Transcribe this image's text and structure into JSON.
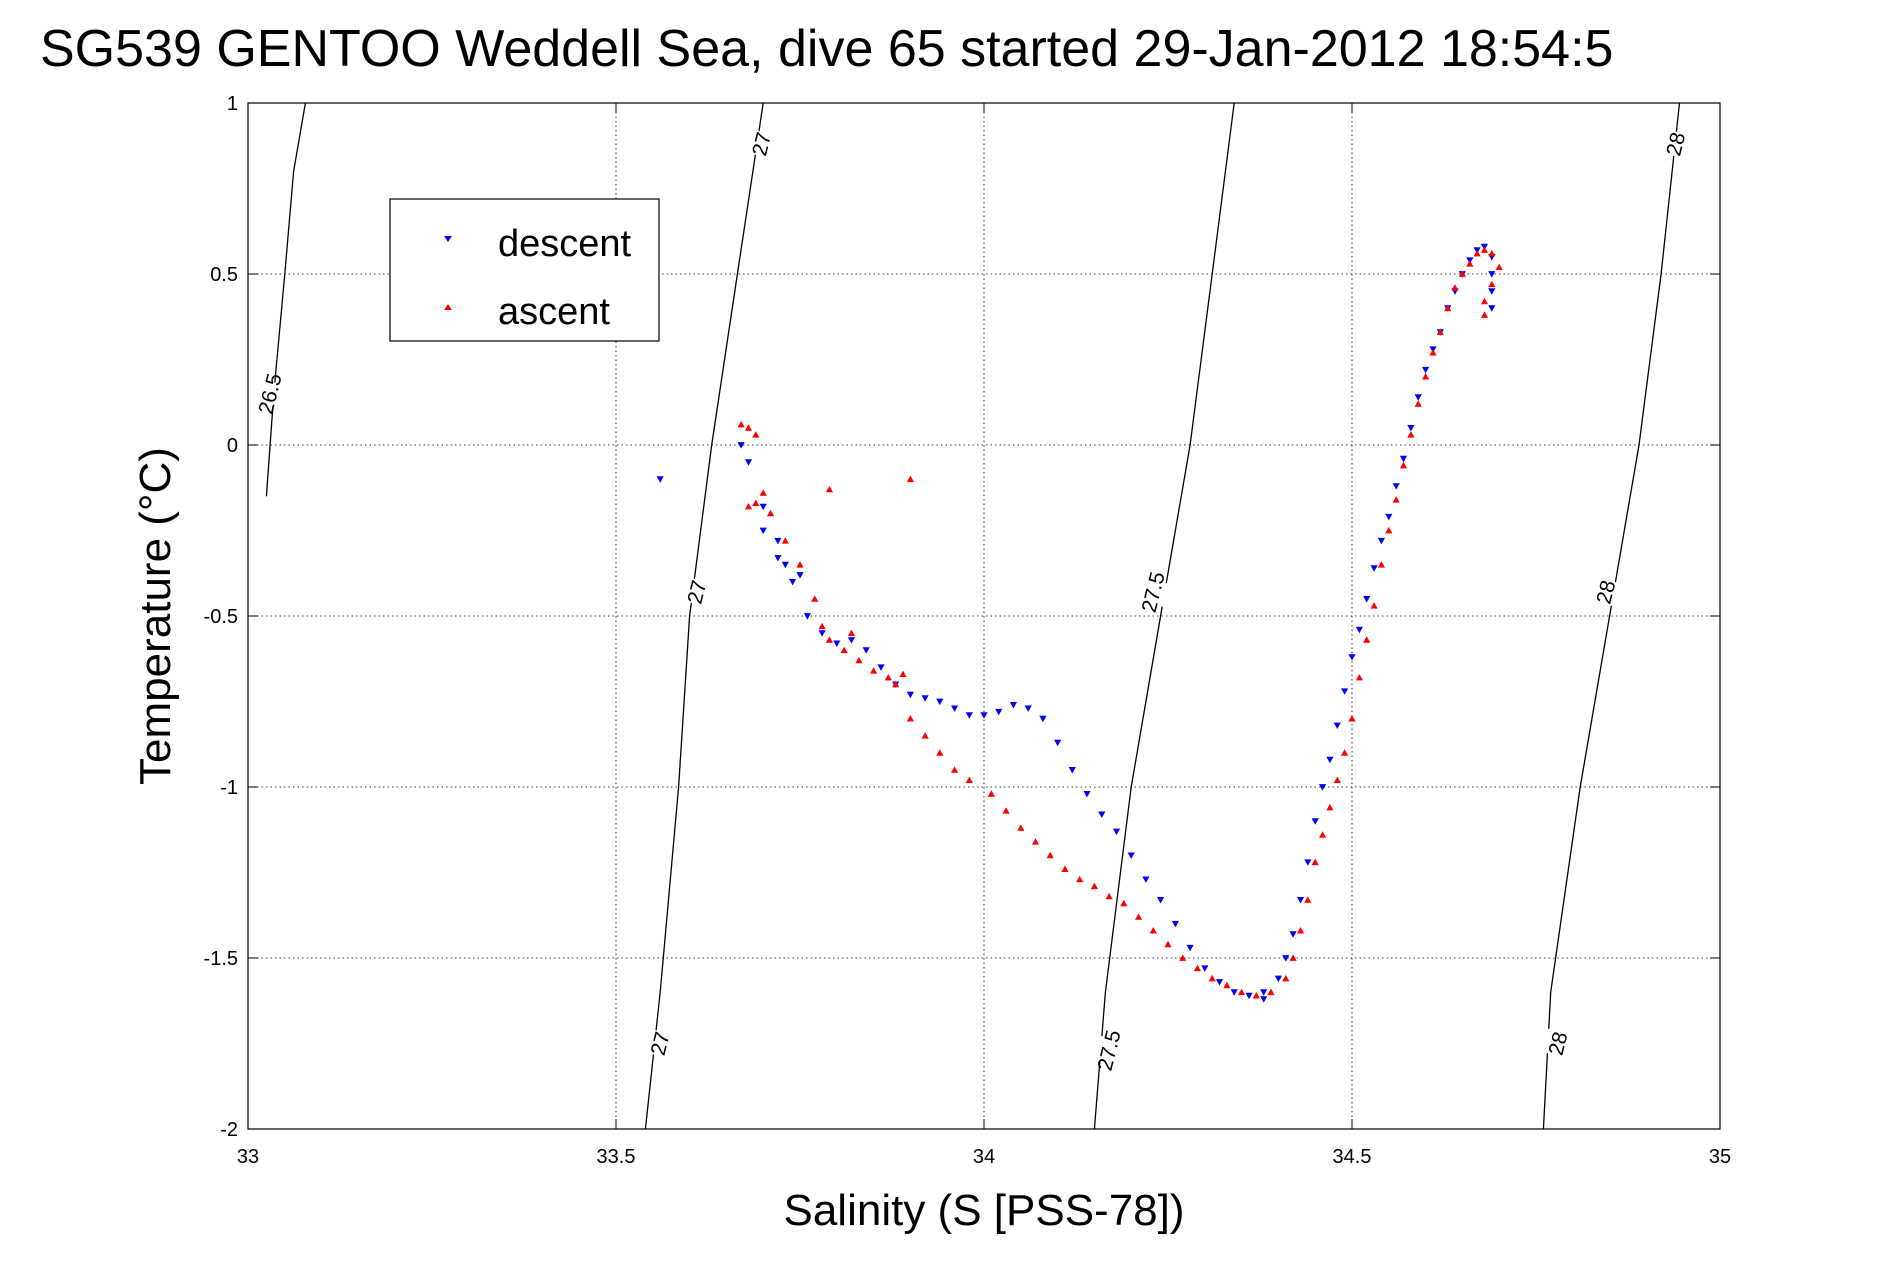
{
  "chart_data": {
    "type": "scatter",
    "title": "SG539 GENTOO Weddell Sea, dive 65 started 29-Jan-2012 18:54:5",
    "xlabel": "Salinity (S [PSS-78])",
    "ylabel": "Temperature (°C)",
    "xlim": [
      33,
      35
    ],
    "ylim": [
      -2,
      1
    ],
    "xticks": [
      33,
      33.5,
      34,
      34.5,
      35
    ],
    "xtick_labels": [
      "33",
      "33.5",
      "34",
      "34.5",
      "35"
    ],
    "yticks": [
      -2,
      -1.5,
      -1,
      -0.5,
      0,
      0.5,
      1
    ],
    "ytick_labels": [
      "-2",
      "-1.5",
      "-1",
      "-0.5",
      "0",
      "0.5",
      "1"
    ],
    "grid": true,
    "legend": {
      "position": "top-left",
      "entries": [
        "descent",
        "ascent"
      ]
    },
    "colors": {
      "descent": "#0000ff",
      "ascent": "#ff0000",
      "contour": "#000000"
    },
    "contours": [
      {
        "level": "26.5",
        "points": [
          [
            33.025,
            -0.15
          ],
          [
            33.035,
            0.15
          ],
          [
            33.05,
            0.5
          ],
          [
            33.062,
            0.8
          ],
          [
            33.078,
            1.0
          ]
        ]
      },
      {
        "level": "27",
        "points": [
          [
            33.54,
            -2.0
          ],
          [
            33.56,
            -1.6
          ],
          [
            33.585,
            -1.0
          ],
          [
            33.6,
            -0.5
          ],
          [
            33.63,
            0.0
          ],
          [
            33.665,
            0.5
          ],
          [
            33.7,
            1.0
          ]
        ]
      },
      {
        "level": "27.5",
        "points": [
          [
            34.15,
            -2.0
          ],
          [
            34.165,
            -1.6
          ],
          [
            34.2,
            -1.0
          ],
          [
            34.24,
            -0.5
          ],
          [
            34.28,
            0.0
          ],
          [
            34.31,
            0.5
          ],
          [
            34.34,
            1.0
          ]
        ]
      },
      {
        "level": "28",
        "points": [
          [
            34.76,
            -2.0
          ],
          [
            34.77,
            -1.6
          ],
          [
            34.81,
            -1.0
          ],
          [
            34.85,
            -0.5
          ],
          [
            34.89,
            0.0
          ],
          [
            34.92,
            0.5
          ],
          [
            34.945,
            1.0
          ]
        ]
      }
    ],
    "contour_labels": [
      {
        "text": "26.5",
        "x": 33.03,
        "y": 0.15
      },
      {
        "text": "27",
        "x": 33.698,
        "y": 0.88
      },
      {
        "text": "27",
        "x": 33.61,
        "y": -0.43
      },
      {
        "text": "27",
        "x": 33.56,
        "y": -1.75
      },
      {
        "text": "27.5",
        "x": 34.23,
        "y": -0.43
      },
      {
        "text": "27.5",
        "x": 34.17,
        "y": -1.77
      },
      {
        "text": "28",
        "x": 34.94,
        "y": 0.88
      },
      {
        "text": "28",
        "x": 34.845,
        "y": -0.43
      },
      {
        "text": "28",
        "x": 34.78,
        "y": -1.75
      }
    ],
    "series": [
      {
        "name": "descent",
        "marker": "triangle-down",
        "points": [
          [
            33.56,
            -0.1
          ],
          [
            33.67,
            0.0
          ],
          [
            33.68,
            -0.05
          ],
          [
            33.7,
            -0.18
          ],
          [
            33.7,
            -0.25
          ],
          [
            33.72,
            -0.28
          ],
          [
            33.72,
            -0.33
          ],
          [
            33.73,
            -0.35
          ],
          [
            33.74,
            -0.4
          ],
          [
            33.75,
            -0.38
          ],
          [
            33.76,
            -0.5
          ],
          [
            33.78,
            -0.55
          ],
          [
            33.8,
            -0.58
          ],
          [
            33.82,
            -0.57
          ],
          [
            33.84,
            -0.6
          ],
          [
            33.86,
            -0.65
          ],
          [
            33.88,
            -0.7
          ],
          [
            33.9,
            -0.73
          ],
          [
            33.92,
            -0.74
          ],
          [
            33.94,
            -0.75
          ],
          [
            33.96,
            -0.77
          ],
          [
            33.98,
            -0.79
          ],
          [
            34.0,
            -0.79
          ],
          [
            34.02,
            -0.78
          ],
          [
            34.04,
            -0.76
          ],
          [
            34.06,
            -0.77
          ],
          [
            34.08,
            -0.8
          ],
          [
            34.1,
            -0.87
          ],
          [
            34.12,
            -0.95
          ],
          [
            34.14,
            -1.02
          ],
          [
            34.16,
            -1.08
          ],
          [
            34.18,
            -1.13
          ],
          [
            34.2,
            -1.2
          ],
          [
            34.22,
            -1.27
          ],
          [
            34.24,
            -1.33
          ],
          [
            34.26,
            -1.4
          ],
          [
            34.28,
            -1.47
          ],
          [
            34.3,
            -1.53
          ],
          [
            34.32,
            -1.57
          ],
          [
            34.34,
            -1.6
          ],
          [
            34.36,
            -1.61
          ],
          [
            34.38,
            -1.6
          ],
          [
            34.4,
            -1.56
          ],
          [
            34.41,
            -1.5
          ],
          [
            34.42,
            -1.43
          ],
          [
            34.43,
            -1.33
          ],
          [
            34.44,
            -1.22
          ],
          [
            34.45,
            -1.1
          ],
          [
            34.46,
            -1.0
          ],
          [
            34.47,
            -0.92
          ],
          [
            34.48,
            -0.82
          ],
          [
            34.49,
            -0.72
          ],
          [
            34.5,
            -0.62
          ],
          [
            34.51,
            -0.54
          ],
          [
            34.52,
            -0.45
          ],
          [
            34.53,
            -0.36
          ],
          [
            34.54,
            -0.28
          ],
          [
            34.55,
            -0.21
          ],
          [
            34.56,
            -0.12
          ],
          [
            34.57,
            -0.04
          ],
          [
            34.58,
            0.05
          ],
          [
            34.59,
            0.14
          ],
          [
            34.6,
            0.22
          ],
          [
            34.61,
            0.28
          ],
          [
            34.62,
            0.33
          ],
          [
            34.63,
            0.4
          ],
          [
            34.64,
            0.45
          ],
          [
            34.65,
            0.5
          ],
          [
            34.66,
            0.54
          ],
          [
            34.67,
            0.57
          ],
          [
            34.68,
            0.58
          ],
          [
            34.69,
            0.55
          ],
          [
            34.69,
            0.5
          ],
          [
            34.69,
            0.45
          ],
          [
            34.69,
            0.4
          ],
          [
            34.38,
            -1.62
          ]
        ]
      },
      {
        "name": "ascent",
        "marker": "triangle-up",
        "points": [
          [
            33.67,
            0.06
          ],
          [
            33.68,
            0.05
          ],
          [
            33.69,
            0.03
          ],
          [
            33.7,
            -0.14
          ],
          [
            33.69,
            -0.17
          ],
          [
            33.68,
            -0.18
          ],
          [
            33.71,
            -0.2
          ],
          [
            33.73,
            -0.28
          ],
          [
            33.75,
            -0.35
          ],
          [
            33.77,
            -0.45
          ],
          [
            33.78,
            -0.53
          ],
          [
            33.79,
            -0.57
          ],
          [
            33.81,
            -0.6
          ],
          [
            33.83,
            -0.63
          ],
          [
            33.85,
            -0.66
          ],
          [
            33.87,
            -0.68
          ],
          [
            33.88,
            -0.7
          ],
          [
            33.9,
            -0.8
          ],
          [
            33.92,
            -0.85
          ],
          [
            33.94,
            -0.9
          ],
          [
            33.96,
            -0.95
          ],
          [
            33.98,
            -0.98
          ],
          [
            34.01,
            -1.02
          ],
          [
            34.03,
            -1.07
          ],
          [
            34.05,
            -1.12
          ],
          [
            34.07,
            -1.16
          ],
          [
            34.09,
            -1.2
          ],
          [
            34.11,
            -1.24
          ],
          [
            34.13,
            -1.27
          ],
          [
            34.15,
            -1.29
          ],
          [
            34.17,
            -1.32
          ],
          [
            34.19,
            -1.34
          ],
          [
            34.21,
            -1.38
          ],
          [
            34.23,
            -1.42
          ],
          [
            34.25,
            -1.46
          ],
          [
            34.27,
            -1.5
          ],
          [
            34.29,
            -1.53
          ],
          [
            34.31,
            -1.56
          ],
          [
            34.33,
            -1.58
          ],
          [
            34.35,
            -1.6
          ],
          [
            34.37,
            -1.61
          ],
          [
            34.39,
            -1.6
          ],
          [
            34.41,
            -1.56
          ],
          [
            34.42,
            -1.5
          ],
          [
            34.43,
            -1.42
          ],
          [
            34.44,
            -1.33
          ],
          [
            34.45,
            -1.22
          ],
          [
            34.46,
            -1.14
          ],
          [
            34.47,
            -1.06
          ],
          [
            34.48,
            -0.98
          ],
          [
            34.49,
            -0.9
          ],
          [
            34.5,
            -0.8
          ],
          [
            34.51,
            -0.68
          ],
          [
            34.52,
            -0.57
          ],
          [
            34.53,
            -0.47
          ],
          [
            34.54,
            -0.35
          ],
          [
            34.55,
            -0.25
          ],
          [
            34.56,
            -0.16
          ],
          [
            34.57,
            -0.06
          ],
          [
            34.58,
            0.03
          ],
          [
            34.59,
            0.12
          ],
          [
            34.6,
            0.2
          ],
          [
            34.61,
            0.27
          ],
          [
            34.62,
            0.33
          ],
          [
            34.63,
            0.4
          ],
          [
            34.64,
            0.46
          ],
          [
            34.65,
            0.5
          ],
          [
            34.66,
            0.53
          ],
          [
            34.67,
            0.56
          ],
          [
            34.68,
            0.57
          ],
          [
            34.69,
            0.56
          ],
          [
            34.7,
            0.52
          ],
          [
            34.69,
            0.47
          ],
          [
            34.68,
            0.42
          ],
          [
            34.68,
            0.38
          ],
          [
            33.82,
            -0.55
          ],
          [
            33.9,
            -0.1
          ],
          [
            33.79,
            -0.13
          ],
          [
            33.89,
            -0.67
          ]
        ]
      }
    ]
  }
}
